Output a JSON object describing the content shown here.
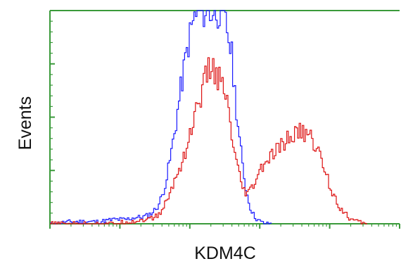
{
  "chart_data": {
    "type": "line",
    "title": "",
    "xlabel": "KDM4C",
    "ylabel": "Events",
    "x_scale": "log",
    "xlim": [
      1,
      100000
    ],
    "ylim": [
      0,
      100
    ],
    "grid": false,
    "legend": "none",
    "colors": {
      "axis": "#3a9a3a",
      "frame": "#3a9a3a"
    },
    "series": [
      {
        "color": "#1a1aff",
        "x": [
          1.0,
          2.0,
          3.0,
          5.0,
          8.0,
          12.0,
          16.0,
          20.0,
          25.0,
          30.0,
          35.0,
          40.0,
          46.0,
          52.0,
          60.0,
          70.0,
          80.0,
          90.0,
          100.0,
          115.0,
          130.0,
          150.0,
          170.0,
          195.0,
          220.0,
          260.0,
          300.0,
          340.0,
          390.0,
          440.0,
          500.0,
          560.0,
          630.0,
          710.0,
          800.0,
          900.0,
          1000.0,
          1150.0,
          1300.0,
          1500.0
        ],
        "y": [
          0,
          1,
          1,
          1,
          2,
          2,
          3,
          3,
          4,
          6,
          9,
          14,
          22,
          32,
          44,
          60,
          72,
          82,
          90,
          97,
          100,
          100,
          100,
          99,
          100,
          100,
          96,
          90,
          78,
          58,
          40,
          26,
          15,
          8,
          4,
          2,
          1,
          0,
          0,
          0
        ]
      },
      {
        "color": "#dd1111",
        "x": [
          1.0,
          4.0,
          8.0,
          12.0,
          16.0,
          20.0,
          25.0,
          30.0,
          35.0,
          40.0,
          46.0,
          52.0,
          60.0,
          70.0,
          80.0,
          90.0,
          100.0,
          115.0,
          130.0,
          150.0,
          170.0,
          195.0,
          220.0,
          260.0,
          300.0,
          340.0,
          390.0,
          440.0,
          500.0,
          560.0,
          630.0,
          710.0,
          800.0,
          900.0,
          1000.0,
          1150.0,
          1300.0,
          1500.0,
          1700.0,
          1950.0,
          2200.0,
          2500.0,
          2800.0,
          3200.0,
          3600.0,
          4000.0,
          4500.0,
          5000.0,
          5600.0,
          6300.0,
          7100.0,
          8000.0,
          9000.0,
          10000.0,
          11500.0,
          13000.0,
          15000.0,
          17000.0,
          20000.0,
          25000.0,
          30000.0,
          35000.0
        ],
        "y": [
          0,
          0,
          0,
          1,
          1,
          2,
          2,
          3,
          4,
          7,
          11,
          15,
          21,
          26,
          32,
          36,
          43,
          50,
          57,
          63,
          70,
          73,
          72,
          67,
          62,
          55,
          40,
          30,
          22,
          16,
          14,
          15,
          18,
          22,
          25,
          28,
          30,
          32,
          34,
          36,
          38,
          40,
          41,
          42,
          43,
          43,
          42,
          41,
          39,
          36,
          32,
          27,
          22,
          17,
          13,
          9,
          6,
          4,
          2,
          1,
          0,
          0
        ]
      }
    ]
  }
}
